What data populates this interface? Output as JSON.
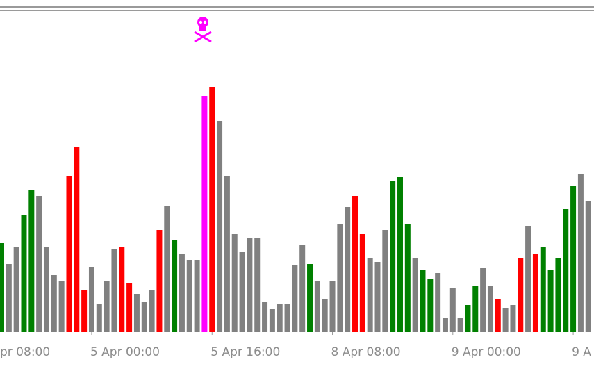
{
  "chart_data": {
    "type": "bar",
    "values": [
      128,
      98,
      123,
      168,
      204,
      196,
      123,
      82,
      74,
      225,
      266,
      60,
      93,
      41,
      74,
      120,
      123,
      71,
      55,
      44,
      60,
      147,
      182,
      133,
      112,
      104,
      104,
      340,
      353,
      304,
      225,
      141,
      115,
      136,
      136,
      44,
      33,
      41,
      41,
      96,
      125,
      98,
      74,
      47,
      74,
      155,
      180,
      196,
      141,
      106,
      101,
      147,
      218,
      223,
      155,
      106,
      90,
      77,
      85,
      20,
      64,
      20,
      39,
      66,
      92,
      66,
      47,
      34,
      39,
      107,
      153,
      112,
      123,
      90,
      107,
      177,
      210,
      228,
      188
    ],
    "colors": [
      "#008000",
      "#808080",
      "#808080",
      "#008000",
      "#008000",
      "#808080",
      "#808080",
      "#808080",
      "#808080",
      "#ff0000",
      "#ff0000",
      "#ff0000",
      "#808080",
      "#808080",
      "#808080",
      "#808080",
      "#ff0000",
      "#ff0000",
      "#808080",
      "#808080",
      "#808080",
      "#ff0000",
      "#808080",
      "#008000",
      "#808080",
      "#808080",
      "#808080",
      "#ff00ff",
      "#ff0000",
      "#808080",
      "#808080",
      "#808080",
      "#808080",
      "#808080",
      "#808080",
      "#808080",
      "#808080",
      "#808080",
      "#808080",
      "#808080",
      "#808080",
      "#008000",
      "#808080",
      "#808080",
      "#808080",
      "#808080",
      "#808080",
      "#ff0000",
      "#ff0000",
      "#808080",
      "#808080",
      "#808080",
      "#008000",
      "#008000",
      "#008000",
      "#808080",
      "#008000",
      "#008000",
      "#808080",
      "#808080",
      "#808080",
      "#808080",
      "#008000",
      "#008000",
      "#808080",
      "#808080",
      "#ff0000",
      "#808080",
      "#808080",
      "#ff0000",
      "#808080",
      "#ff0000",
      "#008000",
      "#008000",
      "#008000",
      "#008000",
      "#008000",
      "#808080",
      "#808080"
    ],
    "xticks": [
      {
        "value": -4,
        "label": "pr 08:00"
      },
      {
        "value": 12,
        "label": "5 Apr 00:00"
      },
      {
        "value": 28,
        "label": "5 Apr 16:00"
      },
      {
        "value": 44,
        "label": "8 Apr 08:00"
      },
      {
        "value": 60,
        "label": "9 Apr 00:00"
      },
      {
        "value": 76,
        "label": "9 A"
      }
    ]
  }
}
